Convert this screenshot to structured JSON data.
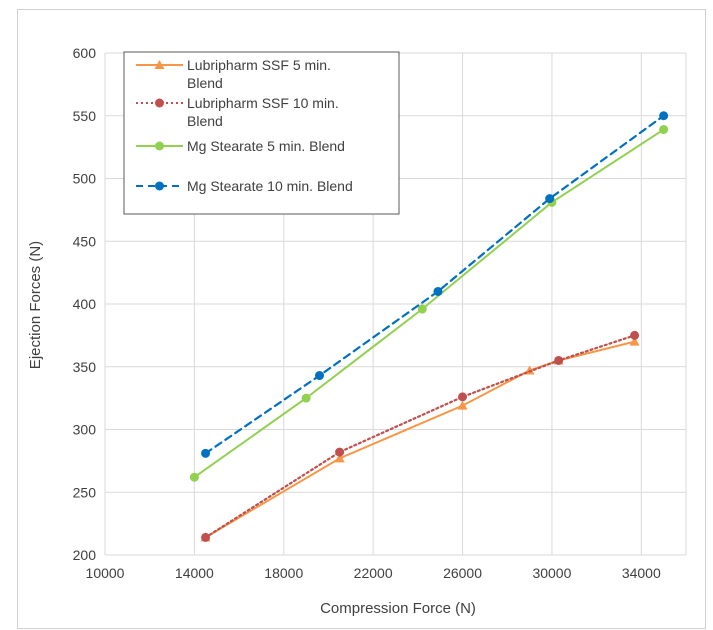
{
  "chart_data": {
    "type": "line",
    "title": "",
    "xlabel": "Compression Force (N)",
    "ylabel": "Ejection Forces (N)",
    "xlim": [
      10000,
      36000
    ],
    "ylim": [
      200,
      600
    ],
    "x_ticks": [
      "10000",
      "14000",
      "18000",
      "22000",
      "26000",
      "30000",
      "34000"
    ],
    "y_ticks": [
      "200",
      "250",
      "300",
      "350",
      "400",
      "450",
      "500",
      "550",
      "600"
    ],
    "grid": true,
    "legend_position": "top-left",
    "series": [
      {
        "name": "Lubripharm SSF 5 min. Blend",
        "legend_lines": [
          "Lubripharm SSF 5 min.",
          "Blend"
        ],
        "color": "#f79646",
        "marker": "triangle",
        "line_style": "solid",
        "x": [
          14500,
          20500,
          26000,
          29000,
          30300,
          33700
        ],
        "y": [
          214,
          277,
          319,
          347,
          355,
          370
        ]
      },
      {
        "name": "Lubripharm SSF 10 min. Blend",
        "legend_lines": [
          "Lubripharm SSF 10 min.",
          "Blend"
        ],
        "color": "#c0504d",
        "marker": "circle",
        "line_style": "dotted",
        "x": [
          14500,
          20500,
          26000,
          30300,
          33700
        ],
        "y": [
          214,
          282,
          326,
          355,
          375
        ]
      },
      {
        "name": "Mg Stearate 5 min. Blend",
        "legend_lines": [
          "Mg Stearate 5 min. Blend"
        ],
        "color": "#92d050",
        "marker": "circle",
        "line_style": "solid",
        "x": [
          14000,
          19000,
          24200,
          30000,
          35000
        ],
        "y": [
          262,
          325,
          396,
          481,
          539
        ]
      },
      {
        "name": "Mg Stearate 10 min. Blend",
        "legend_lines": [
          "Mg Stearate 10 min. Blend"
        ],
        "color": "#0070c0",
        "marker": "circle",
        "line_style": "dashed",
        "x": [
          14500,
          19600,
          24900,
          29900,
          35000
        ],
        "y": [
          281,
          343,
          410,
          484,
          550
        ]
      }
    ]
  }
}
